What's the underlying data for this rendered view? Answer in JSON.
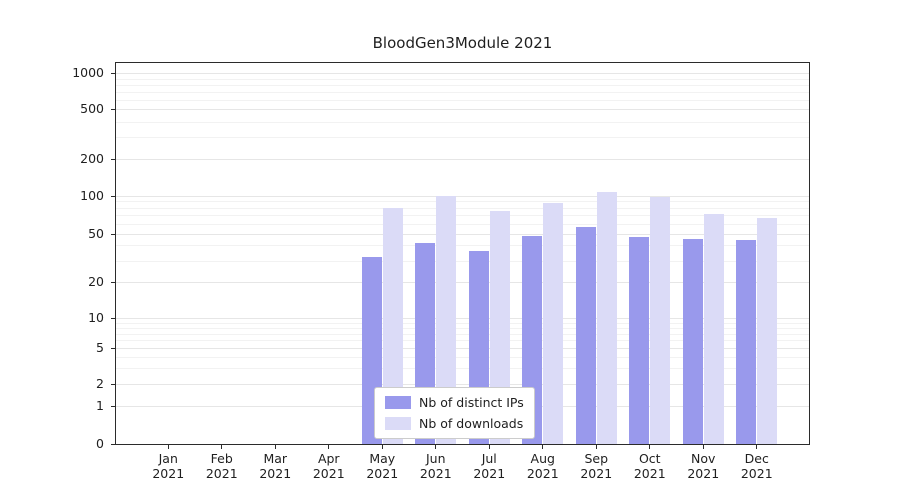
{
  "chart": {
    "background": "#ffffff",
    "grid_major_color": "#e6e6e6",
    "grid_minor_color": "#f2f2f2",
    "axis_color": "#2b2b2b",
    "text_color": "#1f1f1f"
  },
  "chart_data": {
    "type": "bar",
    "title": "BloodGen3Module 2021",
    "y_scale": "symlog",
    "y_ticks": [
      0,
      1,
      2,
      5,
      10,
      20,
      50,
      100,
      200,
      500,
      1000
    ],
    "ylim": [
      0,
      1100
    ],
    "grid": true,
    "legend_position": "lower center",
    "x_months": [
      "Jan",
      "Feb",
      "Mar",
      "Apr",
      "May",
      "Jun",
      "Jul",
      "Aug",
      "Sep",
      "Oct",
      "Nov",
      "Dec"
    ],
    "x_year": "2021",
    "categories": [
      "Jan 2021",
      "Feb 2021",
      "Mar 2021",
      "Apr 2021",
      "May 2021",
      "Jun 2021",
      "Jul 2021",
      "Aug 2021",
      "Sep 2021",
      "Oct 2021",
      "Nov 2021",
      "Dec 2021"
    ],
    "series": [
      {
        "name": "Nb of distinct IPs",
        "color": "#9999ec",
        "values": [
          0,
          0,
          0,
          0,
          32,
          42,
          36,
          48,
          57,
          47,
          45,
          44
        ]
      },
      {
        "name": "Nb of downloads",
        "color": "#dbdbf7",
        "values": [
          0,
          0,
          0,
          0,
          80,
          100,
          75,
          88,
          108,
          98,
          72,
          67
        ]
      }
    ]
  }
}
